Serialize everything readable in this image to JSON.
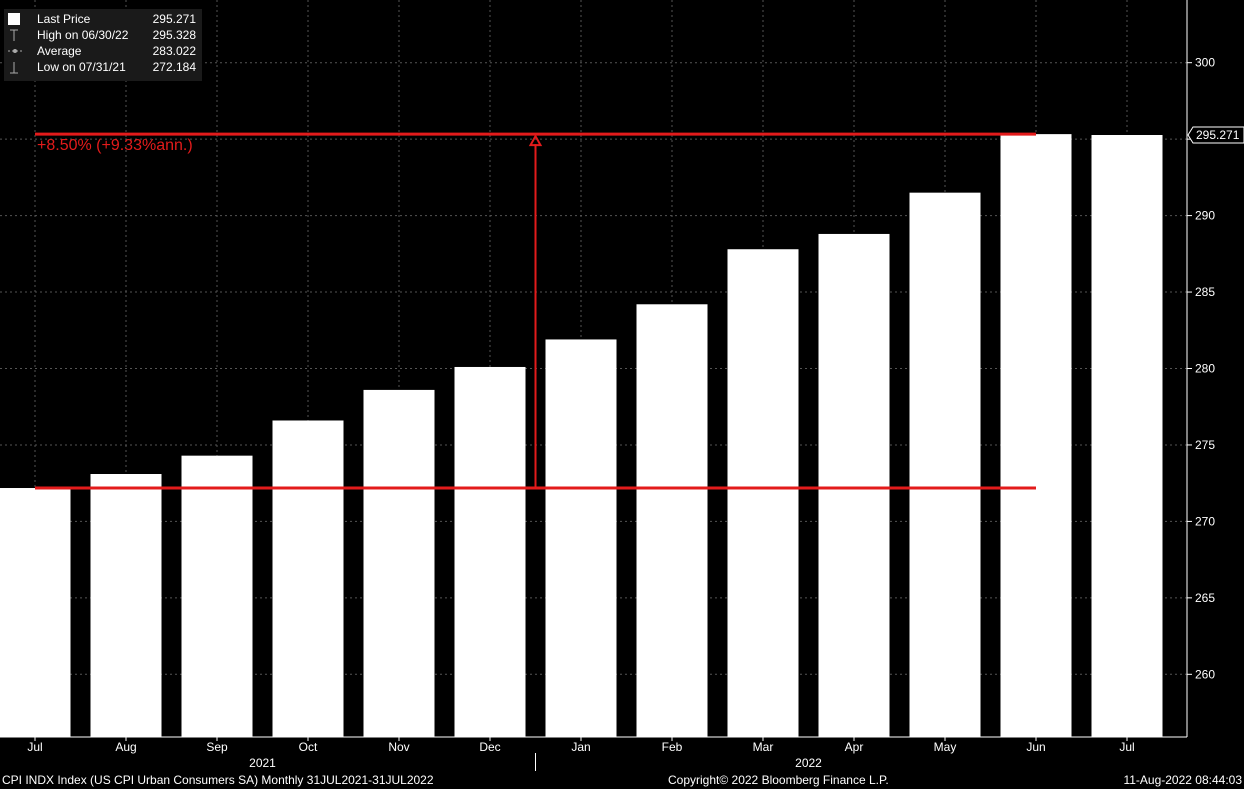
{
  "legend": {
    "items": [
      {
        "label": "Last Price",
        "value": "295.271",
        "icon": "filled-square-icon"
      },
      {
        "label": "High on 06/30/22",
        "value": "295.328",
        "icon": "high-marker-icon"
      },
      {
        "label": "Average",
        "value": "283.022",
        "icon": "average-marker-icon"
      },
      {
        "label": "Low on 07/31/21",
        "value": "272.184",
        "icon": "low-marker-icon"
      }
    ]
  },
  "footer": {
    "left": "CPI INDX Index (US CPI Urban Consumers SA)  Monthly 31JUL2021-31JUL2022",
    "center": "Copyright© 2022 Bloomberg Finance L.P.",
    "right": "11-Aug-2022 08:44:03"
  },
  "chart_data": {
    "type": "bar",
    "categories": [
      "Jul",
      "Aug",
      "Sep",
      "Oct",
      "Nov",
      "Dec",
      "Jan",
      "Feb",
      "Mar",
      "Apr",
      "May",
      "Jun",
      "Jul"
    ],
    "year_labels": [
      {
        "label": "2021",
        "category_index": 2.5
      },
      {
        "label": "2022",
        "category_index": 8.5
      }
    ],
    "values": [
      272.184,
      273.1,
      274.3,
      276.6,
      278.6,
      280.1,
      281.9,
      284.2,
      287.8,
      288.8,
      291.5,
      295.328,
      295.271
    ],
    "ylim": [
      255.9,
      304.1
    ],
    "yticks": [
      260,
      265,
      270,
      275,
      280,
      285,
      290,
      295,
      300
    ],
    "ytick_labels": [
      "260",
      "265",
      "270",
      "275",
      "280",
      "285",
      "290",
      "",
      "300"
    ],
    "last_price_label": "295.271",
    "grid": true,
    "colors": {
      "bars": "#ffffff",
      "background": "#000000",
      "annotation": "#e31b1b",
      "grid": "#555555"
    },
    "annotation": {
      "text": "+8.50% (+9.33%ann.)",
      "low_value": 272.184,
      "high_value": 295.328,
      "from_category": 0,
      "to_category": 11
    }
  }
}
